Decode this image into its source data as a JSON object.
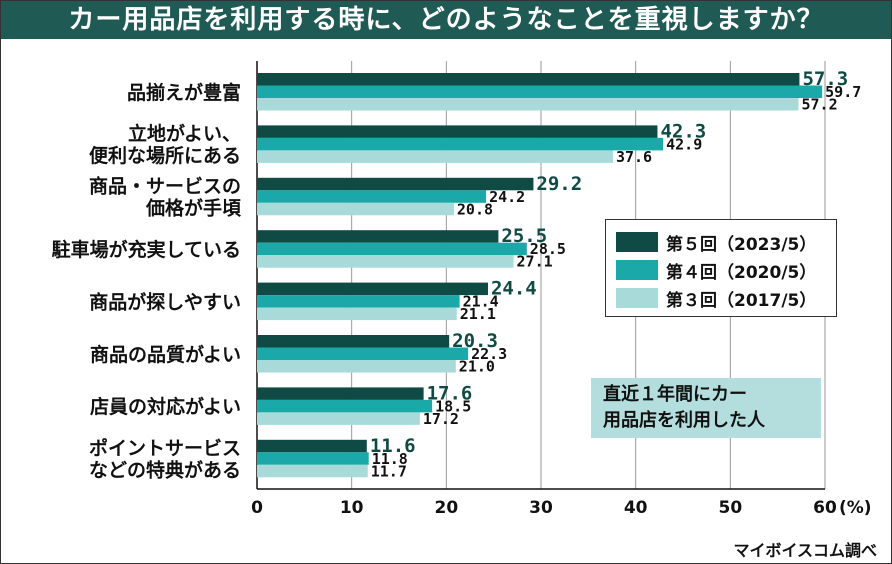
{
  "title": "カー用品店を利用する時に、どのようなことを重視しますか？",
  "source": "マイボイスコム調べ",
  "note": "直近１年間にカー\n用品店を利用した人",
  "colors": {
    "title_bg": "#1f5a54",
    "series": [
      "#0f4a45",
      "#1aa8a8",
      "#a9dada"
    ],
    "note_bg": "#b4dddd",
    "accent_text": "#0f4a45"
  },
  "chart_data": {
    "type": "bar",
    "orientation": "horizontal",
    "categories": [
      [
        "品揃えが豊富"
      ],
      [
        "立地がよい、",
        "便利な場所にある"
      ],
      [
        "商品・サービスの",
        "価格が手頃"
      ],
      [
        "駐車場が充実している"
      ],
      [
        "商品が探しやすい"
      ],
      [
        "商品の品質がよい"
      ],
      [
        "店員の対応がよい"
      ],
      [
        "ポイントサービス",
        "などの特典がある"
      ]
    ],
    "series": [
      {
        "name": "第５回（2023/5）",
        "values": [
          57.3,
          42.3,
          29.2,
          25.5,
          24.4,
          20.3,
          17.6,
          11.6
        ]
      },
      {
        "name": "第４回（2020/5）",
        "values": [
          59.7,
          42.9,
          24.2,
          28.5,
          21.4,
          22.3,
          18.5,
          11.8
        ]
      },
      {
        "name": "第３回（2017/5）",
        "values": [
          57.2,
          37.6,
          20.8,
          27.1,
          21.1,
          21.0,
          17.2,
          11.7
        ]
      }
    ],
    "value_labels": [
      [
        "57.3",
        "42.3",
        "29.2",
        "25.5",
        "24.4",
        "20.3",
        "17.6",
        "11.6"
      ],
      [
        "59.7",
        "42.9",
        "24.2",
        "28.5",
        "21.4",
        "22.3",
        "18.5",
        "11.8"
      ],
      [
        "57.2",
        "37.6",
        "20.8",
        "27.1",
        "21.1",
        "21.0",
        "17.2",
        "11.7"
      ]
    ],
    "x_ticks": [
      "0",
      "10",
      "20",
      "30",
      "40",
      "50",
      "60"
    ],
    "x_unit": "(%)",
    "xlim": [
      0,
      60
    ],
    "grid": true,
    "legend_position": "right"
  }
}
